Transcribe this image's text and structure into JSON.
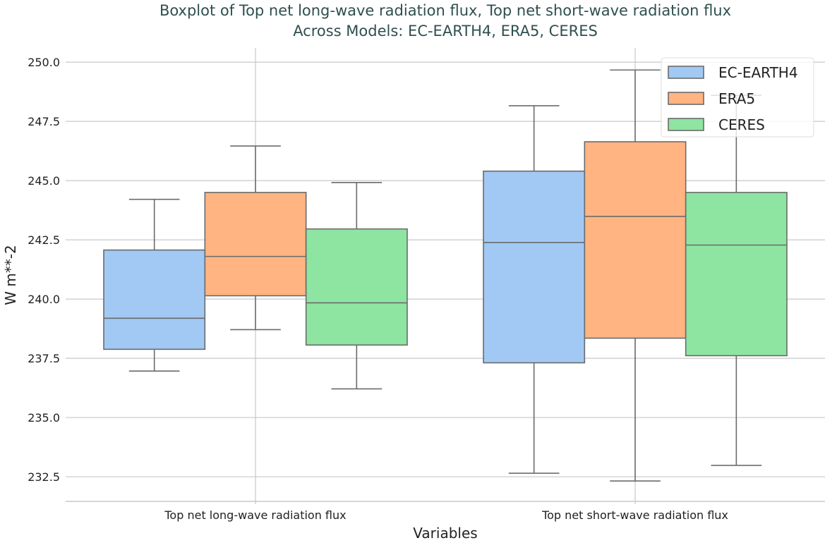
{
  "chart_data": {
    "type": "boxplot",
    "title": "Boxplot of Top net long-wave radiation flux, Top net short-wave radiation flux\nAcross Models: EC-EARTH4, ERA5, CERES",
    "title_lines": [
      "Boxplot of Top net long-wave radiation flux, Top net short-wave radiation flux",
      "Across Models: EC-EARTH4, ERA5, CERES"
    ],
    "xlabel": "Variables",
    "ylabel": "W m**-2",
    "ylim": [
      231.46,
      250.6
    ],
    "yticks": [
      232.5,
      235.0,
      237.5,
      240.0,
      242.5,
      245.0,
      247.5,
      250.0
    ],
    "ytick_labels": [
      "232.5",
      "235.0",
      "237.5",
      "240.0",
      "242.5",
      "245.0",
      "247.5",
      "250.0"
    ],
    "categories": [
      "Top net long-wave radiation flux",
      "Top net short-wave radiation flux"
    ],
    "grid": true,
    "legend_position": "top-right",
    "series": [
      {
        "name": "EC-EARTH4",
        "color": "#a1c9f4",
        "boxes": [
          {
            "whislo": 236.96,
            "q1": 237.88,
            "med": 239.19,
            "q3": 242.07,
            "whishi": 244.21
          },
          {
            "whislo": 232.65,
            "q1": 237.31,
            "med": 242.39,
            "q3": 245.4,
            "whishi": 248.16
          }
        ]
      },
      {
        "name": "ERA5",
        "color": "#ffb482",
        "boxes": [
          {
            "whislo": 238.71,
            "q1": 240.14,
            "med": 241.8,
            "q3": 244.5,
            "whishi": 246.46
          },
          {
            "whislo": 232.32,
            "q1": 238.35,
            "med": 243.49,
            "q3": 246.64,
            "whishi": 249.67
          }
        ]
      },
      {
        "name": "CERES",
        "color": "#8de5a1",
        "boxes": [
          {
            "whislo": 236.21,
            "q1": 238.06,
            "med": 239.84,
            "q3": 242.96,
            "whishi": 244.92
          },
          {
            "whislo": 232.98,
            "q1": 237.61,
            "med": 242.28,
            "q3": 244.5,
            "whishi": 248.6
          }
        ]
      }
    ]
  }
}
